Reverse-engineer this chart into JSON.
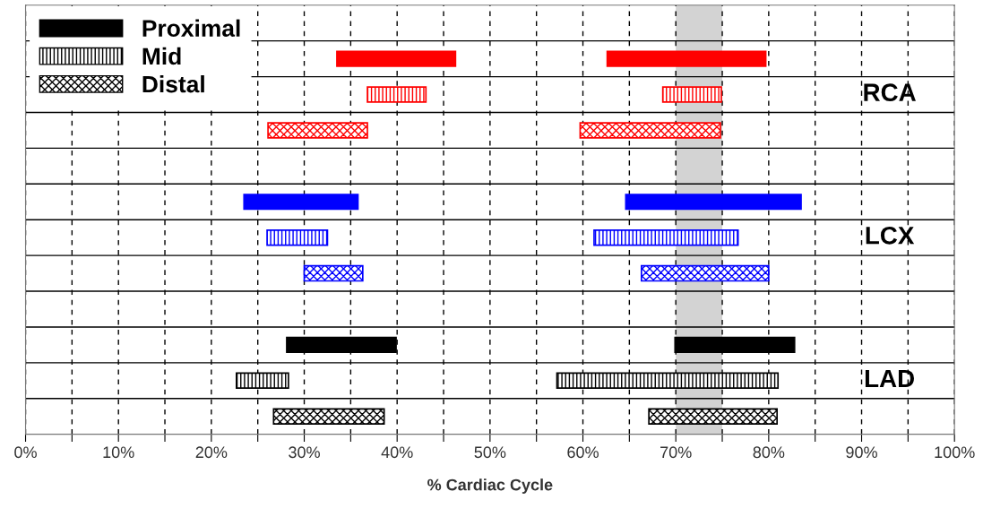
{
  "chart_data": {
    "type": "bar",
    "orientation": "horizontal",
    "xlabel": "% Cardiac Cycle",
    "categories": [
      null,
      null,
      null,
      null,
      null,
      null,
      null,
      null,
      null,
      null,
      null,
      null
    ],
    "series": [
      {
        "name": "Proximal",
        "values": [
          null,
          12.8,
          null,
          null,
          null,
          12.3,
          null,
          null,
          null,
          11.8,
          null,
          null
        ],
        "base": [
          null,
          33.5,
          null,
          null,
          null,
          23.5,
          null,
          null,
          null,
          28.1,
          null,
          null
        ],
        "colors": [
          null,
          "#ff0000",
          null,
          null,
          null,
          "#0000ff",
          null,
          null,
          null,
          "#000000",
          null,
          null
        ]
      },
      {
        "name": "Mid",
        "values": [
          null,
          null,
          6.3,
          null,
          null,
          null,
          6.5,
          null,
          null,
          null,
          5.6,
          null
        ],
        "base": [
          null,
          null,
          36.8,
          null,
          null,
          null,
          26.0,
          null,
          null,
          null,
          22.7,
          null
        ],
        "colors": [
          null,
          null,
          "#ff0000",
          null,
          null,
          null,
          "#0000ff",
          null,
          null,
          null,
          "#000000",
          null
        ]
      },
      {
        "name": "Distal",
        "values": [
          null,
          null,
          null,
          10.7,
          null,
          null,
          null,
          6.3,
          null,
          null,
          null,
          11.9
        ],
        "base": [
          null,
          null,
          null,
          26.1,
          null,
          null,
          null,
          30.0,
          null,
          null,
          null,
          26.7
        ],
        "colors": [
          null,
          null,
          null,
          "#ff0000",
          null,
          null,
          null,
          "#0000ff",
          null,
          null,
          null,
          "#000000"
        ]
      },
      {
        "values": [
          null,
          17.1,
          null,
          null,
          null,
          18.9,
          null,
          null,
          null,
          12.9,
          null,
          null
        ],
        "base": [
          null,
          62.6,
          null,
          null,
          null,
          64.6,
          null,
          null,
          null,
          69.9,
          null,
          null
        ],
        "colors": [
          null,
          "#ff0000",
          null,
          null,
          null,
          "#0000ff",
          null,
          null,
          null,
          "#000000",
          null,
          null
        ]
      },
      {
        "values": [
          null,
          null,
          6.3,
          null,
          null,
          null,
          15.5,
          null,
          null,
          null,
          23.8,
          null
        ],
        "base": [
          null,
          null,
          68.6,
          null,
          null,
          null,
          61.2,
          null,
          null,
          null,
          57.2,
          null
        ],
        "colors": [
          null,
          null,
          "#ff0000",
          null,
          null,
          null,
          "#0000ff",
          null,
          null,
          null,
          "#000000",
          null
        ]
      },
      {
        "values": [
          null,
          null,
          null,
          15.1,
          null,
          null,
          null,
          13.7,
          null,
          null,
          null,
          13.8
        ],
        "base": [
          null,
          null,
          null,
          59.7,
          null,
          null,
          null,
          66.3,
          null,
          null,
          null,
          67.1
        ],
        "colors": [
          null,
          null,
          null,
          "#ff0000",
          null,
          null,
          null,
          "#0000ff",
          null,
          null,
          null,
          "#000000"
        ]
      }
    ],
    "bands": [
      {
        "axis": "x",
        "from": 70,
        "to": 75,
        "color": "#d3d3d3"
      }
    ],
    "annotations": [
      "RCA",
      "LCX",
      "LAD"
    ],
    "xlim": [
      0,
      100
    ],
    "xticks": [
      {
        "value": 0,
        "label": "0%"
      },
      {
        "value": 5,
        "label": null
      },
      {
        "value": 10,
        "label": "10%"
      },
      {
        "value": 15,
        "label": null
      },
      {
        "value": 20,
        "label": "20%"
      },
      {
        "value": 25,
        "label": null
      },
      {
        "value": 30,
        "label": "30%"
      },
      {
        "value": 35,
        "label": null
      },
      {
        "value": 40,
        "label": "40%"
      },
      {
        "value": 45,
        "label": null
      },
      {
        "value": 50,
        "label": "50%"
      },
      {
        "value": 55,
        "label": null
      },
      {
        "value": 60,
        "label": "60%"
      },
      {
        "value": 65,
        "label": null
      },
      {
        "value": 70,
        "label": "70%"
      },
      {
        "value": 75,
        "label": null
      },
      {
        "value": 80,
        "label": "80%"
      },
      {
        "value": 85,
        "label": null
      },
      {
        "value": 90,
        "label": "90%"
      },
      {
        "value": 95,
        "label": null
      },
      {
        "value": 100,
        "label": "100%"
      }
    ],
    "grid": true,
    "legend": "top left"
  }
}
